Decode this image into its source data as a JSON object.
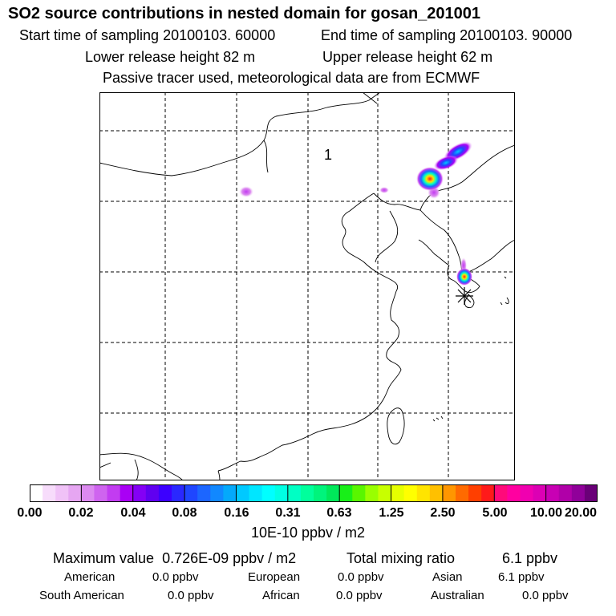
{
  "header": {
    "title": "SO2 source contributions in nested domain for gosan_201001",
    "start_time": "Start time of sampling 20100103. 60000",
    "end_time": "End time of sampling 20100103. 90000",
    "lower_height": "Lower release height   82 m",
    "upper_height": "Upper release height   62 m",
    "note": "Passive tracer used, meteorological data are from ECMWF"
  },
  "map": {
    "label": "1",
    "grid": "dashed lat/lon lines",
    "marker": "receptor-asterisk"
  },
  "colorbar": {
    "tick_labels": [
      "0.00",
      "0.02",
      "0.04",
      "0.08",
      "0.16",
      "0.31",
      "0.63",
      "1.25",
      "2.50",
      "5.00",
      "10.00",
      "20.00"
    ],
    "unit": "10E-10 ppbv / m2",
    "colors": [
      "#ffffff",
      "#f7dcfb",
      "#f0c2f7",
      "#e6a6f2",
      "#dc8af0",
      "#cf64ef",
      "#c23cf1",
      "#a900f5",
      "#8400f5",
      "#6000f0",
      "#3c00ff",
      "#2a28ff",
      "#1f46ff",
      "#1c66ff",
      "#1188ff",
      "#04a9fb",
      "#00c9ff",
      "#00e6ff",
      "#00ffff",
      "#00ffe3",
      "#00ffc4",
      "#00ff9c",
      "#00f47c",
      "#00e85a",
      "#18ef18",
      "#59f600",
      "#99ff00",
      "#c8ff00",
      "#e6ff00",
      "#ffff00",
      "#ffe400",
      "#ffc000",
      "#ff9600",
      "#ff6a00",
      "#ff3f00",
      "#ff1a1a",
      "#ff0a7a",
      "#ff00a0",
      "#f000b0",
      "#dc00b4",
      "#c800b4",
      "#b000a8",
      "#90009a",
      "#6a0078"
    ]
  },
  "summary": {
    "max_label": "Maximum value",
    "max_value": "0.726E-09 ppbv / m2",
    "total_label": "Total mixing ratio",
    "total_value": "6.1 ppbv"
  },
  "regions": [
    {
      "name": "American",
      "value": "0.0 ppbv"
    },
    {
      "name": "European",
      "value": "0.0 ppbv"
    },
    {
      "name": "Asian",
      "value": "6.1 ppbv"
    },
    {
      "name": "South American",
      "value": "0.0 ppbv"
    },
    {
      "name": "African",
      "value": "0.0 ppbv"
    },
    {
      "name": "Australian",
      "value": "0.0 ppbv"
    }
  ]
}
